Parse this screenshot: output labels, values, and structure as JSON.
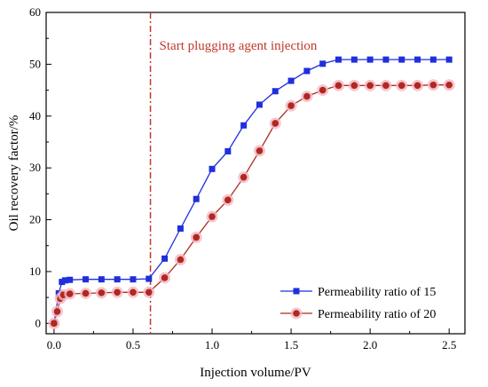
{
  "chart_data": {
    "type": "line",
    "xlabel": "Injection volume/PV",
    "ylabel": "Oil recovery factor/%",
    "xlim": [
      -0.05,
      2.6
    ],
    "ylim": [
      -2,
      60
    ],
    "x_ticks": [
      "0.0",
      "0.5",
      "1.0",
      "1.5",
      "2.0",
      "2.5"
    ],
    "x_tick_values": [
      0,
      0.5,
      1.0,
      1.5,
      2.0,
      2.5
    ],
    "y_ticks": [
      "0",
      "10",
      "20",
      "30",
      "40",
      "50",
      "60"
    ],
    "y_tick_values": [
      0,
      10,
      20,
      30,
      40,
      50,
      60
    ],
    "grid": false,
    "legend_position": "bottom-right",
    "annotation": {
      "text": "Start plugging agent injection",
      "x": 0.61,
      "color": "#c0392b"
    },
    "series": [
      {
        "name": "Permeability ratio of 15",
        "color": "#1f2fdc",
        "marker": "square",
        "x": [
          0.0,
          0.03,
          0.05,
          0.07,
          0.1,
          0.2,
          0.3,
          0.4,
          0.5,
          0.6,
          0.7,
          0.8,
          0.9,
          1.0,
          1.1,
          1.2,
          1.3,
          1.4,
          1.5,
          1.6,
          1.7,
          1.8,
          1.9,
          2.0,
          2.1,
          2.2,
          2.3,
          2.4,
          2.5
        ],
        "values": [
          0.1,
          5.8,
          8.0,
          8.3,
          8.4,
          8.5,
          8.5,
          8.5,
          8.5,
          8.6,
          12.5,
          18.3,
          24.0,
          29.8,
          33.2,
          38.2,
          42.2,
          44.8,
          46.8,
          48.7,
          50.1,
          50.9,
          50.9,
          50.9,
          50.9,
          50.9,
          50.9,
          50.9,
          50.9
        ]
      },
      {
        "name": "Permeability ratio of 20",
        "color": "#b0281e",
        "marker": "circle",
        "x": [
          0.0,
          0.02,
          0.04,
          0.06,
          0.1,
          0.2,
          0.3,
          0.4,
          0.5,
          0.6,
          0.7,
          0.8,
          0.9,
          1.0,
          1.1,
          1.2,
          1.3,
          1.4,
          1.5,
          1.6,
          1.7,
          1.8,
          1.9,
          2.0,
          2.1,
          2.2,
          2.3,
          2.4,
          2.5
        ],
        "values": [
          0.0,
          2.3,
          4.8,
          5.5,
          5.7,
          5.8,
          5.9,
          6.0,
          6.0,
          6.0,
          8.8,
          12.3,
          16.6,
          20.6,
          23.8,
          28.2,
          33.3,
          38.6,
          42.0,
          43.8,
          45.0,
          45.9,
          45.9,
          45.9,
          45.9,
          45.9,
          45.9,
          46.0,
          46.0
        ]
      }
    ]
  }
}
